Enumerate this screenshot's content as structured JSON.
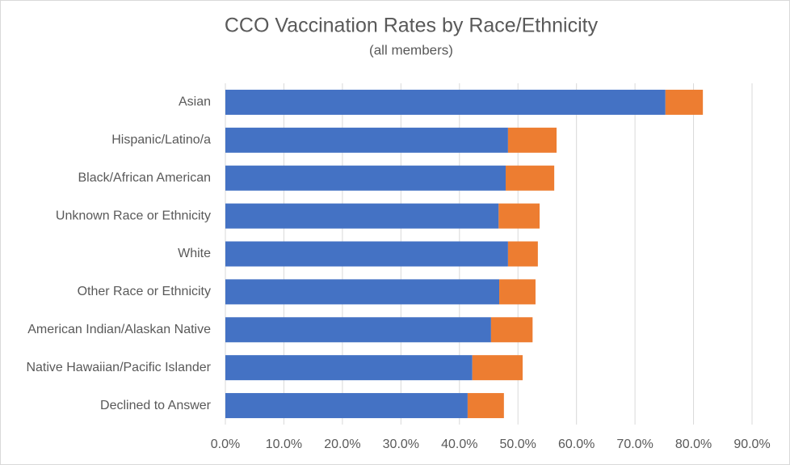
{
  "chart_data": {
    "type": "stacked-hbar",
    "title": "CCO Vaccination Rates by Race/Ethnicity",
    "subtitle": "(all members)",
    "categories": [
      "Asian",
      "Hispanic/Latino/a",
      "Black/African American",
      "Unknown Race or Ethnicity",
      "White",
      "Other Race or Ethnicity",
      "American Indian/Alaskan Native",
      "Native Hawaiian/Pacific Islander",
      "Declined to Answer"
    ],
    "series": [
      {
        "color": "#4472c4",
        "values": [
          75.2,
          48.3,
          47.9,
          46.7,
          48.3,
          46.8,
          45.4,
          42.2,
          41.4
        ]
      },
      {
        "color": "#ed7d31",
        "values": [
          6.4,
          8.3,
          8.3,
          7.0,
          5.1,
          6.2,
          7.1,
          8.6,
          6.2
        ]
      }
    ],
    "xlim": [
      0,
      90
    ],
    "xticks": [
      {
        "value": 0,
        "label": "0.0%"
      },
      {
        "value": 10,
        "label": "10.0%"
      },
      {
        "value": 20,
        "label": "20.0%"
      },
      {
        "value": 30,
        "label": "30.0%"
      },
      {
        "value": 40,
        "label": "40.0%"
      },
      {
        "value": 50,
        "label": "50.0%"
      },
      {
        "value": 60,
        "label": "60.0%"
      },
      {
        "value": 70,
        "label": "70.0%"
      },
      {
        "value": 80,
        "label": "80.0%"
      },
      {
        "value": 90,
        "label": "90.0%"
      }
    ],
    "grid": true
  }
}
